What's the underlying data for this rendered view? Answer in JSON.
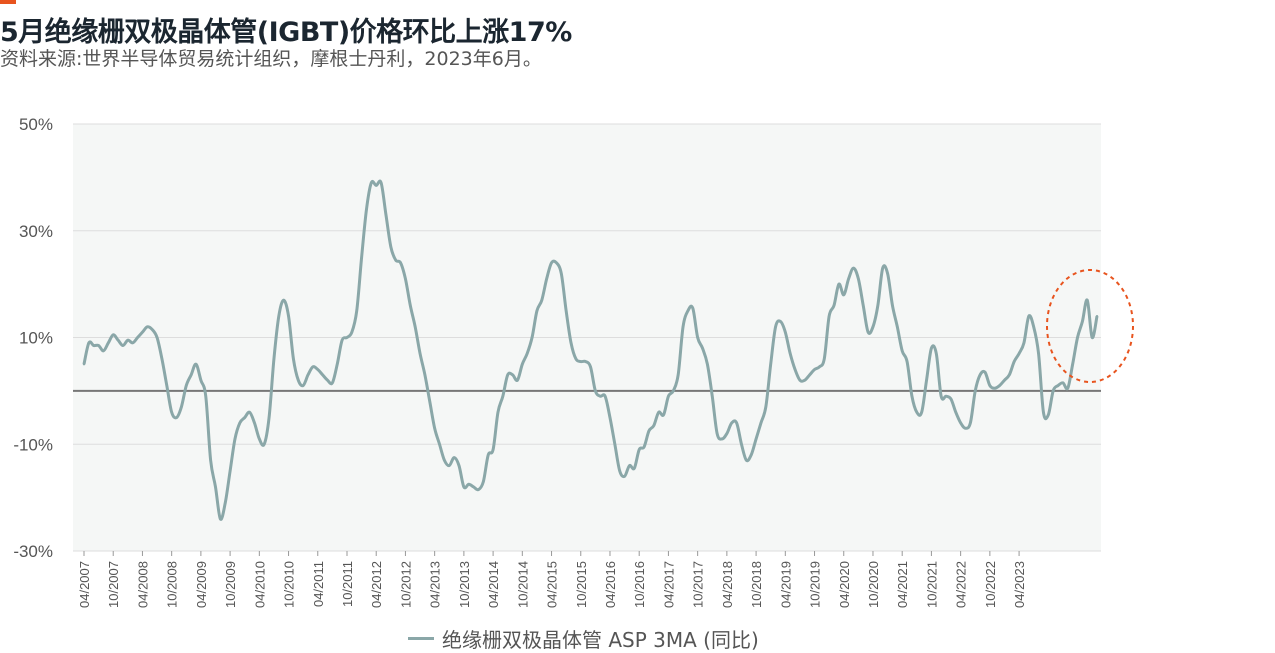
{
  "header": {
    "title": "5月绝缘栅双极晶体管(IGBT)价格环比上涨17%",
    "subtitle": "资料来源:世界半导体贸易统计组织，摩根士丹利，2023年6月。"
  },
  "colors": {
    "accent": "#e8541e",
    "series": "#8aa7a8",
    "zero_line": "#777777",
    "grid": "#dddddd",
    "highlight": "#e8541e"
  },
  "chart_data": {
    "type": "line",
    "title": "5月绝缘栅双极晶体管(IGBT)价格环比上涨17%",
    "xlabel": "",
    "ylabel": "",
    "ylim": [
      -30,
      50
    ],
    "yticks": [
      50,
      30,
      10,
      -10,
      -30
    ],
    "ytick_labels": [
      "50%",
      "30%",
      "10%",
      "-10%",
      "-30%"
    ],
    "xtick_labels": [
      "04/2007",
      "10/2007",
      "04/2008",
      "10/2008",
      "04/2009",
      "10/2009",
      "04/2010",
      "10/2010",
      "04/2011",
      "10/2011",
      "04/2012",
      "10/2012",
      "04/2013",
      "10/2013",
      "04/2014",
      "10/2014",
      "04/2015",
      "10/2015",
      "04/2016",
      "10/2016",
      "04/2017",
      "10/2017",
      "04/2018",
      "10/2018",
      "04/2019",
      "10/2019",
      "04/2020",
      "10/2020",
      "04/2021",
      "10/2021",
      "04/2022",
      "10/2022",
      "04/2023"
    ],
    "grid": true,
    "legend_position": "bottom-center",
    "series": [
      {
        "name": "绝缘栅双极晶体管 ASP 3MA (同比)",
        "x_start": "2007-04",
        "x_step_months": 1,
        "values": [
          5,
          9,
          8.5,
          8.5,
          7.5,
          9,
          10.5,
          9.5,
          8.5,
          9.5,
          9,
          10,
          11,
          12,
          11.5,
          10,
          6,
          1,
          -4,
          -5,
          -3,
          1,
          3,
          5,
          2,
          -1,
          -13,
          -18,
          -24,
          -21,
          -15,
          -9,
          -6,
          -5,
          -4,
          -6,
          -9,
          -10,
          -5,
          6,
          14,
          17,
          14,
          6,
          2,
          1,
          3,
          4.5,
          4,
          3,
          2,
          1.5,
          5,
          9.5,
          10,
          11,
          15,
          25,
          34,
          39,
          38.5,
          39,
          33,
          27,
          24.5,
          24,
          21,
          16,
          12,
          7,
          3,
          -2,
          -7,
          -10,
          -13,
          -14,
          -12.5,
          -14,
          -18,
          -17.5,
          -18,
          -18.5,
          -17,
          -12,
          -11,
          -4,
          -1,
          3,
          3,
          2,
          5,
          7,
          10,
          15,
          17,
          21,
          24,
          24,
          22,
          15,
          9,
          6,
          5.5,
          5.5,
          4.5,
          0,
          -1,
          -1,
          -5,
          -10,
          -15,
          -16,
          -14,
          -14.5,
          -11,
          -10.5,
          -7.5,
          -6.5,
          -4,
          -4.5,
          -1,
          0,
          3,
          12,
          15,
          15.5,
          10,
          8,
          5,
          -1,
          -8,
          -9,
          -8,
          -6,
          -6,
          -10,
          -13,
          -12,
          -9,
          -6,
          -3,
          5,
          12,
          13,
          11,
          7,
          4,
          2,
          2,
          3,
          4,
          4.5,
          6,
          14,
          16,
          20,
          18,
          21,
          23,
          21,
          16,
          11,
          12,
          16,
          23,
          22,
          16,
          12,
          7.5,
          5.5,
          -1,
          -4,
          -4,
          2,
          8,
          7,
          -1,
          -1,
          -1.5,
          -4,
          -6,
          -7,
          -6,
          0,
          3,
          3.5,
          1,
          0.5,
          1,
          2,
          3,
          5.5,
          7,
          9,
          14,
          12,
          7,
          -4,
          -4.5,
          0,
          1,
          1.5,
          0.5,
          5,
          10,
          13,
          17,
          10,
          14
        ]
      }
    ],
    "annotations": [
      {
        "type": "dashed-ellipse",
        "target": "recent values 2022-2023",
        "color": "#e8541e"
      }
    ]
  },
  "legend": {
    "label": "绝缘栅双极晶体管 ASP 3MA (同比)"
  }
}
